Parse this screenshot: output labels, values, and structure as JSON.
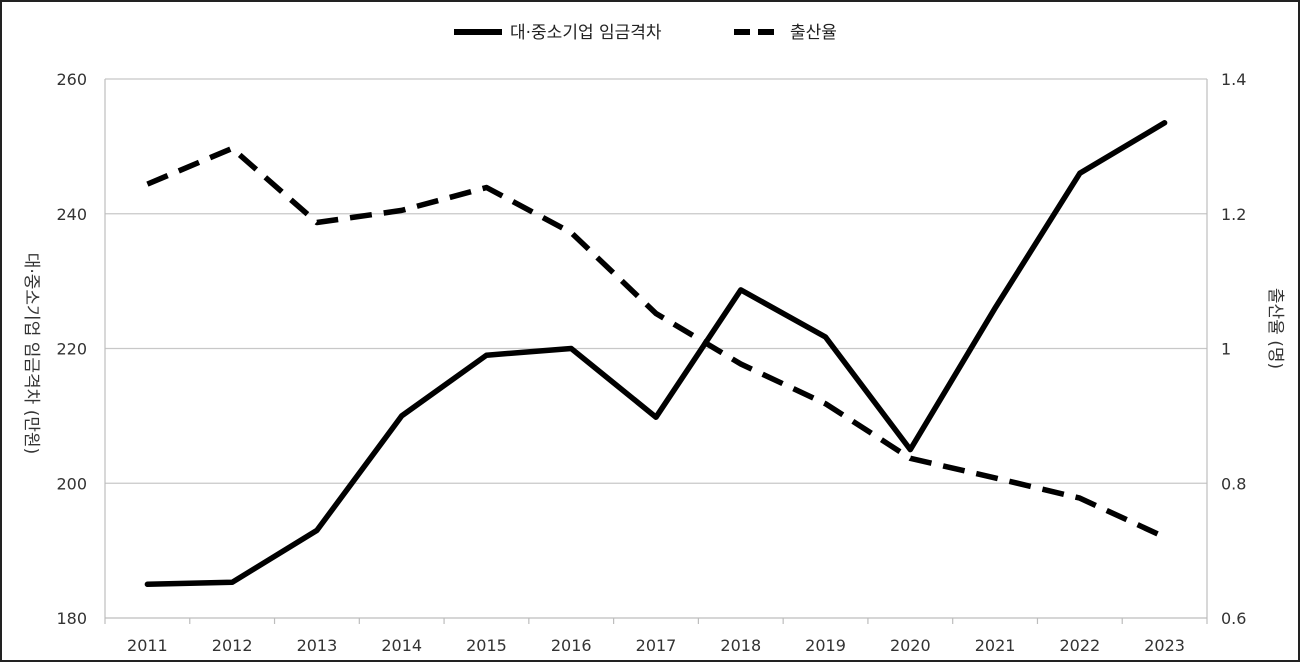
{
  "chart_data": {
    "type": "line",
    "title": "",
    "categories": [
      "2011",
      "2012",
      "2013",
      "2014",
      "2015",
      "2016",
      "2017",
      "2018",
      "2019",
      "2020",
      "2021",
      "2022",
      "2023"
    ],
    "y_left": {
      "label": "대·중소기업 임금격차 (만원)",
      "lim": [
        180,
        260
      ],
      "ticks": [
        180,
        200,
        220,
        240,
        260
      ]
    },
    "y_right": {
      "label": "출산율 (명)",
      "lim": [
        0.6,
        1.4
      ],
      "ticks": [
        "0.6",
        "0.8",
        "1",
        "1.2",
        "1.4"
      ]
    },
    "grid": true,
    "legend_position": "top-center",
    "series": [
      {
        "name": "대·중소기업 임금격차",
        "axis": "left",
        "style": "solid",
        "color": "#000000",
        "values": [
          185.0,
          185.3,
          193.0,
          210.0,
          219.0,
          220.0,
          209.8,
          228.7,
          221.7,
          205.0,
          226.0,
          246.0,
          253.5
        ]
      },
      {
        "name": "출산율",
        "axis": "right",
        "style": "dashed",
        "color": "#000000",
        "values": [
          1.244,
          1.297,
          1.187,
          1.205,
          1.239,
          1.172,
          1.052,
          0.977,
          0.918,
          0.837,
          0.808,
          0.778,
          0.72
        ]
      }
    ]
  }
}
